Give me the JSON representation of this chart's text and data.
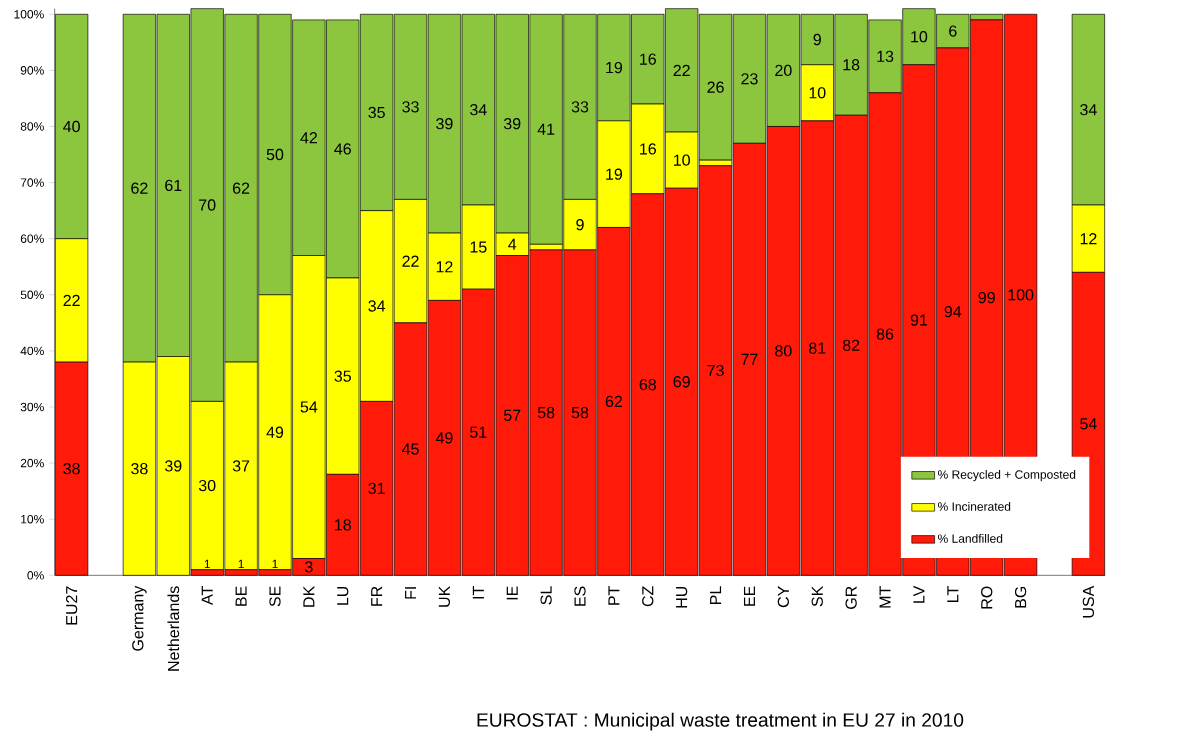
{
  "chart_data": {
    "type": "bar",
    "stacked": true,
    "categories": [
      "EU27",
      null,
      "Germany",
      "Netherlands",
      "AT",
      "BE",
      "SE",
      "DK",
      "LU",
      "FR",
      "FI",
      "UK",
      "IT",
      "IE",
      "SL",
      "ES",
      "PT",
      "CZ",
      "HU",
      "PL",
      "EE",
      "CY",
      "SK",
      "GR",
      "MT",
      "LV",
      "LT",
      "RO",
      "BG",
      null,
      "USA"
    ],
    "series": [
      {
        "name": "% Landfilled",
        "color": "#ff1a0a",
        "values": [
          38,
          null,
          0,
          0,
          1,
          1,
          1,
          3,
          18,
          31,
          45,
          49,
          51,
          57,
          58,
          58,
          62,
          68,
          69,
          73,
          77,
          80,
          81,
          82,
          86,
          91,
          94,
          99,
          100,
          null,
          54
        ],
        "value_labels": [
          "38",
          null,
          null,
          null,
          "1",
          "1",
          "1",
          "3",
          "18",
          "31",
          "45",
          "49",
          "51",
          "57",
          "58",
          "58",
          "62",
          "68",
          "69",
          "73",
          "77",
          "80",
          "81",
          "82",
          "86",
          "91",
          "94",
          "99",
          "100",
          null,
          "54"
        ]
      },
      {
        "name": "% Incinerated",
        "color": "#ffff00",
        "values": [
          22,
          null,
          38,
          39,
          30,
          37,
          49,
          54,
          35,
          34,
          22,
          12,
          15,
          4,
          1,
          9,
          19,
          16,
          10,
          1,
          0,
          0,
          10,
          0,
          0,
          0,
          0,
          0,
          0,
          null,
          12
        ],
        "value_labels": [
          "22",
          null,
          "38",
          "39",
          "30",
          "37",
          "49",
          "54",
          "35",
          "34",
          "22",
          "12",
          "15",
          "4",
          null,
          "9",
          "19",
          "16",
          "10",
          null,
          null,
          null,
          "10",
          null,
          null,
          null,
          null,
          null,
          null,
          null,
          "12"
        ]
      },
      {
        "name": "% Recycled + Composted",
        "color": "#8cc63f",
        "values": [
          40,
          null,
          62,
          61,
          70,
          62,
          50,
          42,
          46,
          35,
          33,
          39,
          34,
          39,
          41,
          33,
          19,
          16,
          22,
          26,
          23,
          20,
          9,
          18,
          13,
          10,
          6,
          1,
          0,
          null,
          34
        ],
        "value_labels": [
          "40",
          null,
          "62",
          "61",
          "70",
          "62",
          "50",
          "42",
          "46",
          "35",
          "33",
          "39",
          "34",
          "39",
          "41",
          "33",
          "19",
          "16",
          "22",
          "26",
          "23",
          "20",
          "9",
          "18",
          "13",
          "10",
          "6",
          null,
          null,
          null,
          "34"
        ]
      }
    ],
    "ylim": [
      0,
      101
    ],
    "yticks": [
      {
        "value": 0,
        "label": "0%"
      },
      {
        "value": 10,
        "label": "10%"
      },
      {
        "value": 20,
        "label": "20%"
      },
      {
        "value": 30,
        "label": "30%"
      },
      {
        "value": 40,
        "label": "40%"
      },
      {
        "value": 50,
        "label": "50%"
      },
      {
        "value": 60,
        "label": "60%"
      },
      {
        "value": 70,
        "label": "70%"
      },
      {
        "value": 80,
        "label": "80%"
      },
      {
        "value": 90,
        "label": "90%"
      },
      {
        "value": 100,
        "label": "100%"
      }
    ],
    "legend": "bottom right",
    "annotations": [
      "EUROSTAT : Municipal waste treatment in EU 27 in 2010"
    ]
  }
}
